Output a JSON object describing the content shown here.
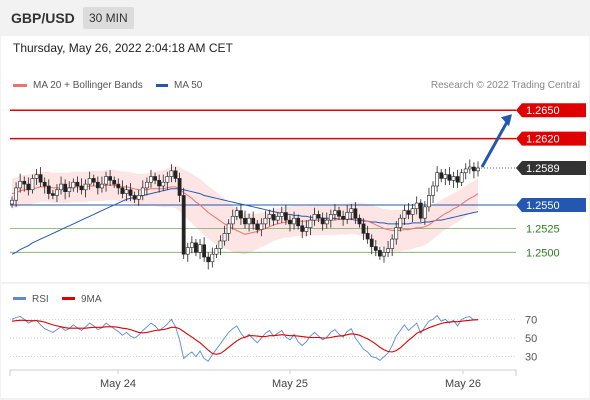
{
  "header": {
    "symbol": "GBP/USD",
    "interval": "30 MIN"
  },
  "timestamp": "Thursday, May 26, 2022 2:04:18 AM CET",
  "legend": {
    "ma20_label": "MA 20 + Bollinger Bands",
    "ma50_label": "MA 50",
    "credit": "Research © 2022 Trading Central"
  },
  "colors": {
    "resistance": "#e00000",
    "pivot": "#2458b0",
    "support": "#7aa860",
    "current": "#333333",
    "ma20": "#f07070",
    "ma50": "#2458b0",
    "band": "#fde0e0",
    "rsi": "#5b8ad6",
    "rsi_ma": "#e00000"
  },
  "chart_data": [
    {
      "type": "candlestick",
      "x_labels": [
        "May 24",
        "May 25",
        "May 26"
      ],
      "ylim": [
        1.2475,
        1.2665
      ],
      "levels": [
        {
          "label": "1.2650",
          "value": 1.265,
          "kind": "resistance"
        },
        {
          "label": "1.2620",
          "value": 1.262,
          "kind": "resistance"
        },
        {
          "label": "1.2589",
          "value": 1.2589,
          "kind": "current"
        },
        {
          "label": "1.2550",
          "value": 1.255,
          "kind": "pivot"
        },
        {
          "label": "1.2525",
          "value": 1.2525,
          "kind": "support"
        },
        {
          "label": "1.2500",
          "value": 1.25,
          "kind": "support"
        }
      ],
      "close": [
        1.2555,
        1.2568,
        1.2575,
        1.2572,
        1.2566,
        1.2578,
        1.2582,
        1.2574,
        1.257,
        1.2562,
        1.256,
        1.2566,
        1.2572,
        1.2564,
        1.2568,
        1.2574,
        1.257,
        1.2566,
        1.2572,
        1.2578,
        1.2574,
        1.2568,
        1.2572,
        1.258,
        1.2576,
        1.2572,
        1.2568,
        1.2562,
        1.2566,
        1.256,
        1.2556,
        1.256,
        1.2568,
        1.2574,
        1.258,
        1.2576,
        1.257,
        1.2574,
        1.258,
        1.2586,
        1.2578,
        1.256,
        1.2498,
        1.2505,
        1.251,
        1.25,
        1.2508,
        1.2495,
        1.249,
        1.2498,
        1.2504,
        1.2512,
        1.252,
        1.253,
        1.2538,
        1.2544,
        1.2536,
        1.253,
        1.2536,
        1.253,
        1.2524,
        1.253,
        1.2536,
        1.254,
        1.2534,
        1.2538,
        1.2542,
        1.2534,
        1.253,
        1.2536,
        1.2528,
        1.2522,
        1.2526,
        1.2534,
        1.254,
        1.2536,
        1.253,
        1.2534,
        1.254,
        1.2544,
        1.2538,
        1.2535,
        1.2542,
        1.2546,
        1.2536,
        1.253,
        1.252,
        1.2514,
        1.2506,
        1.2502,
        1.2496,
        1.25,
        1.2504,
        1.2514,
        1.2526,
        1.2536,
        1.2544,
        1.254,
        1.2546,
        1.2552,
        1.2536,
        1.2548,
        1.256,
        1.257,
        1.2584,
        1.2578,
        1.2582,
        1.2576,
        1.258,
        1.2574,
        1.2584,
        1.2588,
        1.259,
        1.2586,
        1.2589
      ],
      "ma20": [
        1.2562,
        1.2563,
        1.2565,
        1.2566,
        1.2566,
        1.2567,
        1.2568,
        1.2569,
        1.2569,
        1.2569,
        1.2568,
        1.2568,
        1.2568,
        1.2568,
        1.2568,
        1.2569,
        1.2569,
        1.2569,
        1.2569,
        1.257,
        1.257,
        1.257,
        1.257,
        1.2571,
        1.2571,
        1.2571,
        1.257,
        1.2569,
        1.2569,
        1.2568,
        1.2567,
        1.2566,
        1.2566,
        1.2566,
        1.2567,
        1.2567,
        1.2567,
        1.2567,
        1.2568,
        1.2569,
        1.2569,
        1.2567,
        1.2563,
        1.256,
        1.2557,
        1.2553,
        1.255,
        1.2546,
        1.2542,
        1.2539,
        1.2536,
        1.2533,
        1.253,
        1.2528,
        1.2525,
        1.2523,
        1.2521,
        1.2519,
        1.252,
        1.2521,
        1.2522,
        1.2524,
        1.2525,
        1.2527,
        1.2529,
        1.253,
        1.2531,
        1.2532,
        1.2532,
        1.2533,
        1.2533,
        1.2533,
        1.2533,
        1.2534,
        1.2534,
        1.2534,
        1.2534,
        1.2534,
        1.2534,
        1.2534,
        1.2535,
        1.2535,
        1.2535,
        1.2536,
        1.2536,
        1.2535,
        1.2534,
        1.2533,
        1.2531,
        1.2529,
        1.2527,
        1.2525,
        1.2524,
        1.2523,
        1.2523,
        1.2523,
        1.2524,
        1.2524,
        1.2525,
        1.2526,
        1.2526,
        1.2527,
        1.2529,
        1.2532,
        1.2535,
        1.2538,
        1.2541,
        1.2543,
        1.2546,
        1.2548,
        1.2551,
        1.2554,
        1.2557,
        1.2559,
        1.2562
      ],
      "ma50": [
        1.2498,
        1.25,
        1.2503,
        1.2505,
        1.2507,
        1.251,
        1.2512,
        1.2514,
        1.2516,
        1.2518,
        1.252,
        1.2522,
        1.2524,
        1.2526,
        1.2528,
        1.253,
        1.2532,
        1.2534,
        1.2536,
        1.2538,
        1.254,
        1.2542,
        1.2544,
        1.2546,
        1.2548,
        1.255,
        1.2552,
        1.2554,
        1.2556,
        1.2557,
        1.2558,
        1.2559,
        1.256,
        1.2561,
        1.2562,
        1.2563,
        1.2564,
        1.2565,
        1.2566,
        1.2567,
        1.2567,
        1.2567,
        1.2566,
        1.2565,
        1.2564,
        1.2563,
        1.2562,
        1.256,
        1.2559,
        1.2558,
        1.2557,
        1.2556,
        1.2555,
        1.2554,
        1.2553,
        1.2552,
        1.2551,
        1.255,
        1.2549,
        1.2548,
        1.2547,
        1.2546,
        1.2545,
        1.2544,
        1.2543,
        1.2542,
        1.2541,
        1.254,
        1.254,
        1.2539,
        1.2539,
        1.2538,
        1.2538,
        1.2537,
        1.2537,
        1.2537,
        1.2536,
        1.2536,
        1.2536,
        1.2536,
        1.2535,
        1.2535,
        1.2535,
        1.2535,
        1.2534,
        1.2534,
        1.2533,
        1.2533,
        1.2532,
        1.2532,
        1.2531,
        1.2531,
        1.253,
        1.253,
        1.253,
        1.253,
        1.253,
        1.253,
        1.2531,
        1.2531,
        1.2531,
        1.2532,
        1.2532,
        1.2533,
        1.2534,
        1.2534,
        1.2535,
        1.2536,
        1.2537,
        1.2538,
        1.2539,
        1.254,
        1.2541,
        1.2542,
        1.2543
      ]
    },
    {
      "type": "line",
      "series_names": [
        "RSI",
        "9MA"
      ],
      "yticks": [
        "70",
        "50",
        "30"
      ],
      "ylim": [
        20,
        80
      ],
      "rsi": [
        70,
        72,
        73,
        70,
        66,
        68,
        69,
        64,
        60,
        58,
        56,
        59,
        62,
        58,
        60,
        64,
        61,
        58,
        62,
        66,
        63,
        59,
        61,
        66,
        63,
        60,
        57,
        53,
        56,
        52,
        50,
        53,
        58,
        62,
        66,
        63,
        58,
        61,
        65,
        70,
        62,
        48,
        28,
        32,
        35,
        30,
        36,
        28,
        25,
        32,
        38,
        44,
        50,
        56,
        60,
        63,
        55,
        50,
        54,
        49,
        45,
        50,
        55,
        58,
        52,
        55,
        58,
        51,
        48,
        54,
        46,
        42,
        46,
        52,
        56,
        52,
        48,
        51,
        56,
        59,
        54,
        51,
        57,
        60,
        50,
        44,
        38,
        35,
        30,
        29,
        26,
        30,
        34,
        42,
        52,
        58,
        64,
        58,
        62,
        66,
        55,
        62,
        68,
        70,
        74,
        68,
        70,
        66,
        69,
        63,
        70,
        72,
        73,
        69,
        70
      ],
      "rsi_ma": [
        68,
        68.5,
        69,
        69,
        68.5,
        68.5,
        68.5,
        68,
        67,
        65.5,
        64,
        63,
        62,
        61,
        60.5,
        60.5,
        60.5,
        60.5,
        60.5,
        61,
        61.5,
        61.5,
        61.5,
        62,
        62,
        62,
        61.5,
        60.5,
        60,
        59,
        57.5,
        56,
        55.5,
        56,
        57,
        58,
        58.5,
        59,
        60,
        61.5,
        61.5,
        60,
        57,
        54,
        51,
        48,
        45,
        41,
        37,
        33.5,
        32.5,
        33.5,
        36.5,
        40,
        43.5,
        47,
        49.5,
        51,
        52.5,
        52.5,
        52,
        51.5,
        51.5,
        52.5,
        52.5,
        53,
        53.5,
        53,
        52.5,
        52.5,
        52,
        51.5,
        51,
        50.5,
        50.5,
        50.5,
        50,
        50,
        50.5,
        51.5,
        52,
        52.5,
        53.5,
        54.5,
        54,
        53,
        51,
        49,
        46.5,
        43.5,
        40,
        37.5,
        35.5,
        35,
        36.5,
        39.5,
        43.5,
        47.5,
        51,
        55,
        57,
        59,
        61,
        62.5,
        64,
        65.5,
        66.5,
        67,
        67.5,
        67.5,
        68,
        68.5,
        69,
        69.5,
        69.5
      ]
    }
  ]
}
